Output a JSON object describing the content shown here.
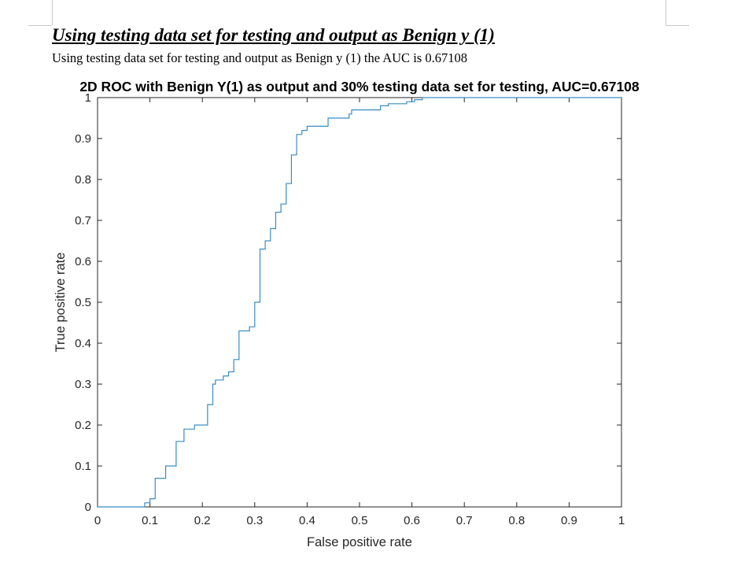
{
  "document": {
    "heading": "Using testing data set for testing and output as Benign y (1)",
    "sentence": "Using testing data set for testing and output as Benign y (1) the AUC  is 0.67108"
  },
  "chart_data": {
    "type": "line",
    "title": "2D ROC with Benign Y(1) as output and 30% testing data set for testing, AUC=0.67108",
    "xlabel": "False positive rate",
    "ylabel": "True positive rate",
    "xlim": [
      0,
      1
    ],
    "ylim": [
      0,
      1
    ],
    "xticks": [
      "0",
      "0.1",
      "0.2",
      "0.3",
      "0.4",
      "0.5",
      "0.6",
      "0.7",
      "0.8",
      "0.9",
      "1"
    ],
    "yticks": [
      "0",
      "0.1",
      "0.2",
      "0.3",
      "0.4",
      "0.5",
      "0.6",
      "0.7",
      "0.8",
      "0.9",
      "1"
    ],
    "grid": false,
    "line_color": "#3a8dc4",
    "series": [
      {
        "x": [
          0,
          0.09,
          0.09,
          0.1,
          0.1,
          0.11,
          0.11,
          0.13,
          0.13,
          0.13,
          0.13,
          0.15,
          0.15,
          0.165,
          0.165,
          0.185,
          0.185,
          0.21,
          0.21,
          0.22,
          0.22,
          0.225,
          0.225,
          0.24,
          0.24,
          0.25,
          0.25,
          0.26,
          0.26,
          0.27,
          0.27,
          0.29,
          0.29,
          0.3,
          0.3,
          0.31,
          0.31,
          0.32,
          0.32,
          0.33,
          0.33,
          0.34,
          0.34,
          0.35,
          0.35,
          0.36,
          0.36,
          0.37,
          0.37,
          0.38,
          0.38,
          0.39,
          0.39,
          0.4,
          0.4,
          0.44,
          0.44,
          0.48,
          0.48,
          0.485,
          0.485,
          0.54,
          0.54,
          0.555,
          0.555,
          0.59,
          0.59,
          0.605,
          0.605,
          0.62,
          0.62,
          0.63,
          0.63,
          0.655,
          0.655,
          0.67,
          0.67,
          0.68,
          0.68,
          0.7,
          0.7,
          1.0
        ],
        "y": [
          0,
          0,
          0.01,
          0.01,
          0.02,
          0.02,
          0.07,
          0.07,
          0.07,
          0.07,
          0.1,
          0.1,
          0.16,
          0.16,
          0.19,
          0.19,
          0.2,
          0.2,
          0.25,
          0.25,
          0.3,
          0.3,
          0.31,
          0.31,
          0.32,
          0.32,
          0.33,
          0.33,
          0.36,
          0.36,
          0.43,
          0.43,
          0.44,
          0.44,
          0.5,
          0.5,
          0.63,
          0.63,
          0.65,
          0.65,
          0.68,
          0.68,
          0.72,
          0.72,
          0.74,
          0.74,
          0.79,
          0.79,
          0.86,
          0.86,
          0.91,
          0.91,
          0.92,
          0.92,
          0.93,
          0.93,
          0.95,
          0.95,
          0.96,
          0.96,
          0.97,
          0.97,
          0.98,
          0.98,
          0.985,
          0.985,
          0.99,
          0.99,
          0.995,
          0.995,
          1.0,
          1.0,
          1.0,
          1.0,
          1.0,
          1.0,
          1.0,
          1.0,
          1.0,
          1.0,
          1.0,
          1.0
        ]
      }
    ]
  }
}
